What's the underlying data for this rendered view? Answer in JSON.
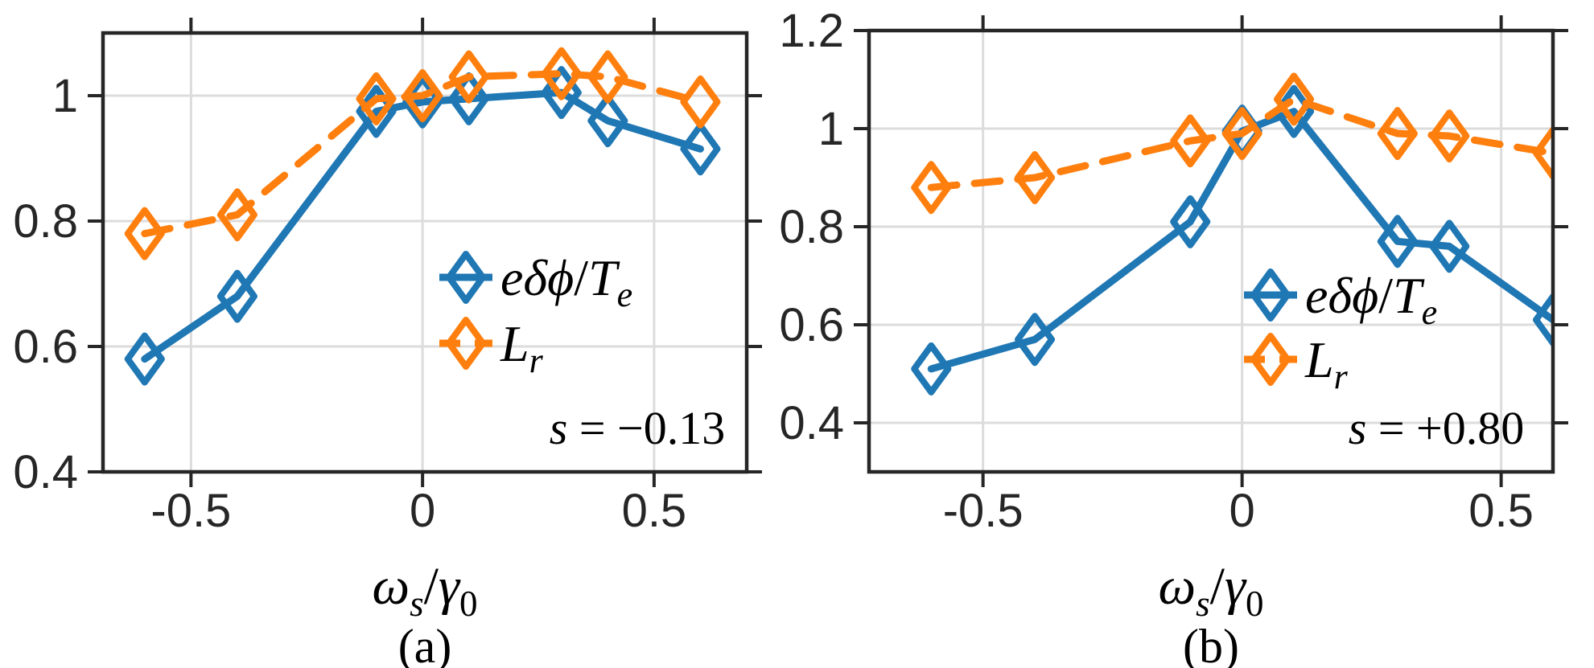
{
  "figure": {
    "background": "#ffffff",
    "grid_color": "#dcdcdc",
    "axis_color": "#262626",
    "blue": "#1f77b4",
    "orange": "#ff7f0e"
  },
  "chart_data": [
    {
      "type": "line",
      "panel": "a",
      "caption": "(a)",
      "annotation": "s = −0.13",
      "annotation_parts": [
        {
          "text": "s",
          "italic": true,
          "sub": false
        },
        {
          "text": " = −0.13",
          "italic": false,
          "sub": false
        }
      ],
      "xlabel": "ωs/γ0",
      "xlabel_parts": [
        {
          "text": "ω",
          "italic": true,
          "sub": false
        },
        {
          "text": "s",
          "italic": true,
          "sub": true
        },
        {
          "text": "/",
          "italic": false,
          "sub": false
        },
        {
          "text": "γ",
          "italic": true,
          "sub": false
        },
        {
          "text": "0",
          "italic": false,
          "sub": true
        }
      ],
      "xlim": [
        -0.69,
        0.7
      ],
      "ylim": [
        0.4,
        1.1
      ],
      "xticks": [
        {
          "v": -0.5,
          "label": "-0.5"
        },
        {
          "v": 0,
          "label": "0"
        },
        {
          "v": 0.5,
          "label": "0.5"
        }
      ],
      "yticks": [
        {
          "v": 0.4,
          "label": "0.4"
        },
        {
          "v": 0.6,
          "label": "0.6"
        },
        {
          "v": 0.8,
          "label": "0.8"
        },
        {
          "v": 1.0,
          "label": "1"
        }
      ],
      "grid": true,
      "legend_position": "center-right-inside",
      "x": [
        -0.6,
        -0.4,
        -0.1,
        0,
        0.1,
        0.3,
        0.4,
        0.6
      ],
      "series": [
        {
          "name": "e-delta-phi-over-Te",
          "label": "eδϕ/Tₑ",
          "label_parts": [
            {
              "text": "eδϕ",
              "italic": true,
              "sub": false
            },
            {
              "text": "/",
              "italic": false,
              "sub": false
            },
            {
              "text": "T",
              "italic": true,
              "sub": false
            },
            {
              "text": "e",
              "italic": true,
              "sub": true
            }
          ],
          "color": "#1f77b4",
          "line": "solid",
          "marker": "diamond",
          "values": [
            0.58,
            0.68,
            0.975,
            0.99,
            0.995,
            1.005,
            0.96,
            0.915
          ]
        },
        {
          "name": "Lr",
          "label": "Lᵣ",
          "label_parts": [
            {
              "text": "L",
              "italic": true,
              "sub": false
            },
            {
              "text": "r",
              "italic": true,
              "sub": true
            }
          ],
          "color": "#ff7f0e",
          "line": "dashed",
          "marker": "diamond",
          "values": [
            0.78,
            0.81,
            0.995,
            1.0,
            1.03,
            1.035,
            1.03,
            0.99
          ]
        }
      ]
    },
    {
      "type": "line",
      "panel": "b",
      "caption": "(b)",
      "annotation": "s = +0.80",
      "annotation_parts": [
        {
          "text": "s",
          "italic": true,
          "sub": false
        },
        {
          "text": " = +0.80",
          "italic": false,
          "sub": false
        }
      ],
      "xlabel": "ωs/γ0",
      "xlabel_parts": [
        {
          "text": "ω",
          "italic": true,
          "sub": false
        },
        {
          "text": "s",
          "italic": true,
          "sub": true
        },
        {
          "text": "/",
          "italic": false,
          "sub": false
        },
        {
          "text": "γ",
          "italic": true,
          "sub": false
        },
        {
          "text": "0",
          "italic": false,
          "sub": true
        }
      ],
      "xlim": [
        -0.72,
        0.6
      ],
      "ylim": [
        0.3,
        1.2
      ],
      "xticks": [
        {
          "v": -0.5,
          "label": "-0.5"
        },
        {
          "v": 0,
          "label": "0"
        },
        {
          "v": 0.5,
          "label": "0.5"
        }
      ],
      "yticks": [
        {
          "v": 0.4,
          "label": "0.4"
        },
        {
          "v": 0.6,
          "label": "0.6"
        },
        {
          "v": 0.8,
          "label": "0.8"
        },
        {
          "v": 1.0,
          "label": "1"
        },
        {
          "v": 1.2,
          "label": "1.2"
        }
      ],
      "grid": true,
      "legend_position": "center-right-inside",
      "x": [
        -0.6,
        -0.4,
        -0.1,
        0,
        0.1,
        0.3,
        0.4,
        0.6
      ],
      "series": [
        {
          "name": "e-delta-phi-over-Te",
          "label": "eδϕ/Tₑ",
          "label_parts": [
            {
              "text": "eδϕ",
              "italic": true,
              "sub": false
            },
            {
              "text": "/",
              "italic": false,
              "sub": false
            },
            {
              "text": "T",
              "italic": true,
              "sub": false
            },
            {
              "text": "e",
              "italic": true,
              "sub": true
            }
          ],
          "color": "#1f77b4",
          "line": "solid",
          "marker": "diamond",
          "values": [
            0.51,
            0.57,
            0.81,
            0.995,
            1.035,
            0.77,
            0.76,
            0.61
          ]
        },
        {
          "name": "Lr",
          "label": "Lᵣ",
          "label_parts": [
            {
              "text": "L",
              "italic": true,
              "sub": false
            },
            {
              "text": "r",
              "italic": true,
              "sub": true
            }
          ],
          "color": "#ff7f0e",
          "line": "dashed",
          "marker": "diamond",
          "values": [
            0.88,
            0.9,
            0.975,
            0.99,
            1.06,
            0.99,
            0.985,
            0.95
          ]
        }
      ]
    }
  ]
}
